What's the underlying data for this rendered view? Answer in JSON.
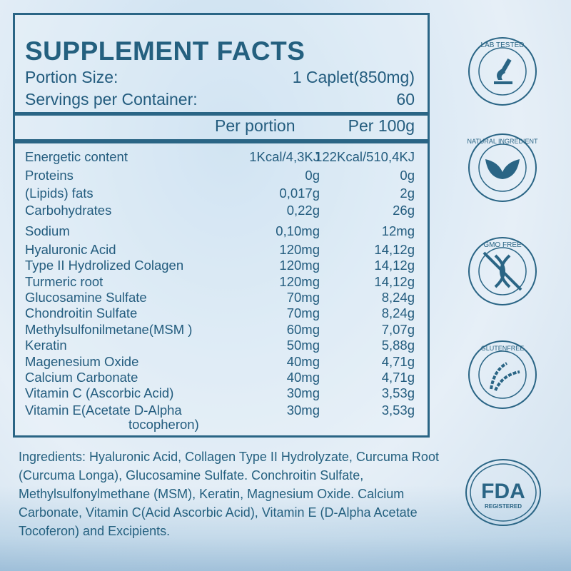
{
  "title": "SUPPLEMENT FACTS",
  "portion": {
    "label": "Portion Size:",
    "value": "1 Caplet(850mg)"
  },
  "servings": {
    "label": "Servings per Container:",
    "value": "60"
  },
  "columns": {
    "per_portion": "Per portion",
    "per_100g": "Per 100g"
  },
  "rows": [
    {
      "name": "Energetic content",
      "per_portion": "1Kcal/4,3KJ",
      "per_100g": "122Kcal/510,4KJ"
    },
    {
      "name": "Proteins",
      "per_portion": "0g",
      "per_100g": "0g"
    },
    {
      "name": "(Lipids) fats",
      "per_portion": "0,017g",
      "per_100g": "2g"
    },
    {
      "name": "Carbohydrates",
      "per_portion": "0,22g",
      "per_100g": "26g"
    },
    {
      "name": "Sodium",
      "per_portion": "0,10mg",
      "per_100g": "12mg"
    },
    {
      "name": "Hyaluronic Acid",
      "per_portion": "120mg",
      "per_100g": "14,12g"
    },
    {
      "name": "Type II Hydrolized Colagen",
      "per_portion": "120mg",
      "per_100g": "14,12g"
    },
    {
      "name": "Turmeric root",
      "per_portion": "120mg",
      "per_100g": "14,12g"
    },
    {
      "name": "Glucosamine Sulfate",
      "per_portion": "70mg",
      "per_100g": "8,24g"
    },
    {
      "name": "Chondroitin Sulfate",
      "per_portion": "70mg",
      "per_100g": "8,24g"
    },
    {
      "name": "Methylsulfonilmetane(MSM )",
      "per_portion": "60mg",
      "per_100g": "7,07g"
    },
    {
      "name": "Keratin",
      "per_portion": "50mg",
      "per_100g": "5,88g"
    },
    {
      "name": "Magenesium Oxide",
      "per_portion": "40mg",
      "per_100g": "4,71g"
    },
    {
      "name": "Calcium Carbonate",
      "per_portion": "40mg",
      "per_100g": "4,71g"
    },
    {
      "name": "Vitamin C (Ascorbic Acid)",
      "per_portion": "30mg",
      "per_100g": "3,53g"
    },
    {
      "name": "Vitamin E(Acetate D-Alpha",
      "name_cont": "tocopheron)",
      "per_portion": "30mg",
      "per_100g": "3,53g"
    }
  ],
  "ingredients": "Ingredients: Hyaluronic Acid, Collagen Type II Hydrolyzate, Curcuma Root (Curcuma Longa), Glucosamine Sulfate. Conchroitin Sulfate, Methylsulfonylmethane (MSM), Keratin, Magnesium Oxide. Calcium Carbonate, Vitamin C(Acid Ascorbic Acid), Vitamin E (D-Alpha Acetate Tocoferon) and Excipients.",
  "badges": [
    {
      "icon": "microscope-icon",
      "text": "LAB TESTED"
    },
    {
      "icon": "leaf-icon",
      "text": "NATURAL INGREDIENT"
    },
    {
      "icon": "dna-crossed-icon",
      "text": "GMO FREE"
    },
    {
      "icon": "wheat-icon",
      "text": "GLUTENFREE"
    },
    {
      "icon": "fda-icon",
      "text": "FDA",
      "subtext": "REGISTERED"
    }
  ],
  "colors": {
    "text": "#235c7e",
    "border": "#2a6585"
  }
}
